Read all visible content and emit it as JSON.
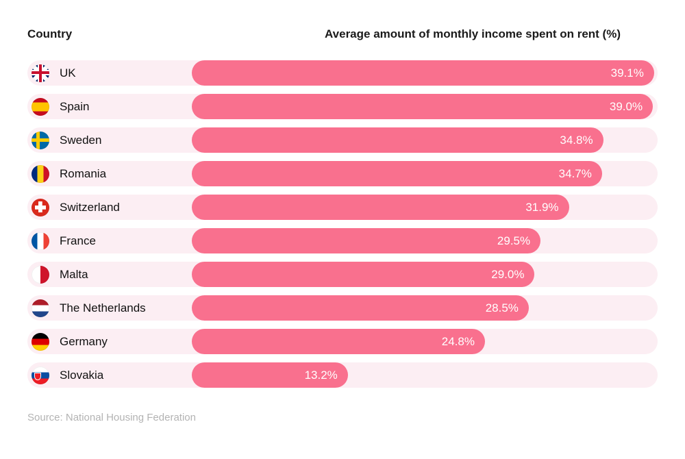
{
  "header": {
    "country_label": "Country",
    "value_label": "Average amount of monthly income spent on rent (%)"
  },
  "footer": {
    "source": "Source: National Housing Federation"
  },
  "colors": {
    "bar": "#F9708E",
    "track": "#FCEEF3",
    "header_text": "#1A1A1A",
    "value_text": "#FFFFFF",
    "source_text": "#B3B3B3"
  },
  "chart_data": {
    "type": "bar",
    "orientation": "horizontal",
    "title": "Average amount of monthly income spent on rent (%)",
    "xlabel": "",
    "ylabel": "Country",
    "xlim": [
      0,
      39.4
    ],
    "grid": false,
    "legend": false,
    "categories": [
      "UK",
      "Spain",
      "Sweden",
      "Romania",
      "Switzerland",
      "France",
      "Malta",
      "The Netherlands",
      "Germany",
      "Slovakia"
    ],
    "values": [
      39.1,
      39.0,
      34.8,
      34.7,
      31.9,
      29.5,
      29.0,
      28.5,
      24.8,
      13.2
    ],
    "value_labels": [
      "39.1%",
      "39.0%",
      "34.8%",
      "34.7%",
      "31.9%",
      "29.5%",
      "29.0%",
      "28.5%",
      "24.8%",
      "13.2%"
    ],
    "flag_icons": [
      "flag-uk",
      "flag-es",
      "flag-se",
      "flag-ro",
      "flag-ch",
      "flag-fr",
      "flag-mt",
      "flag-nl",
      "flag-de",
      "flag-sk"
    ]
  }
}
